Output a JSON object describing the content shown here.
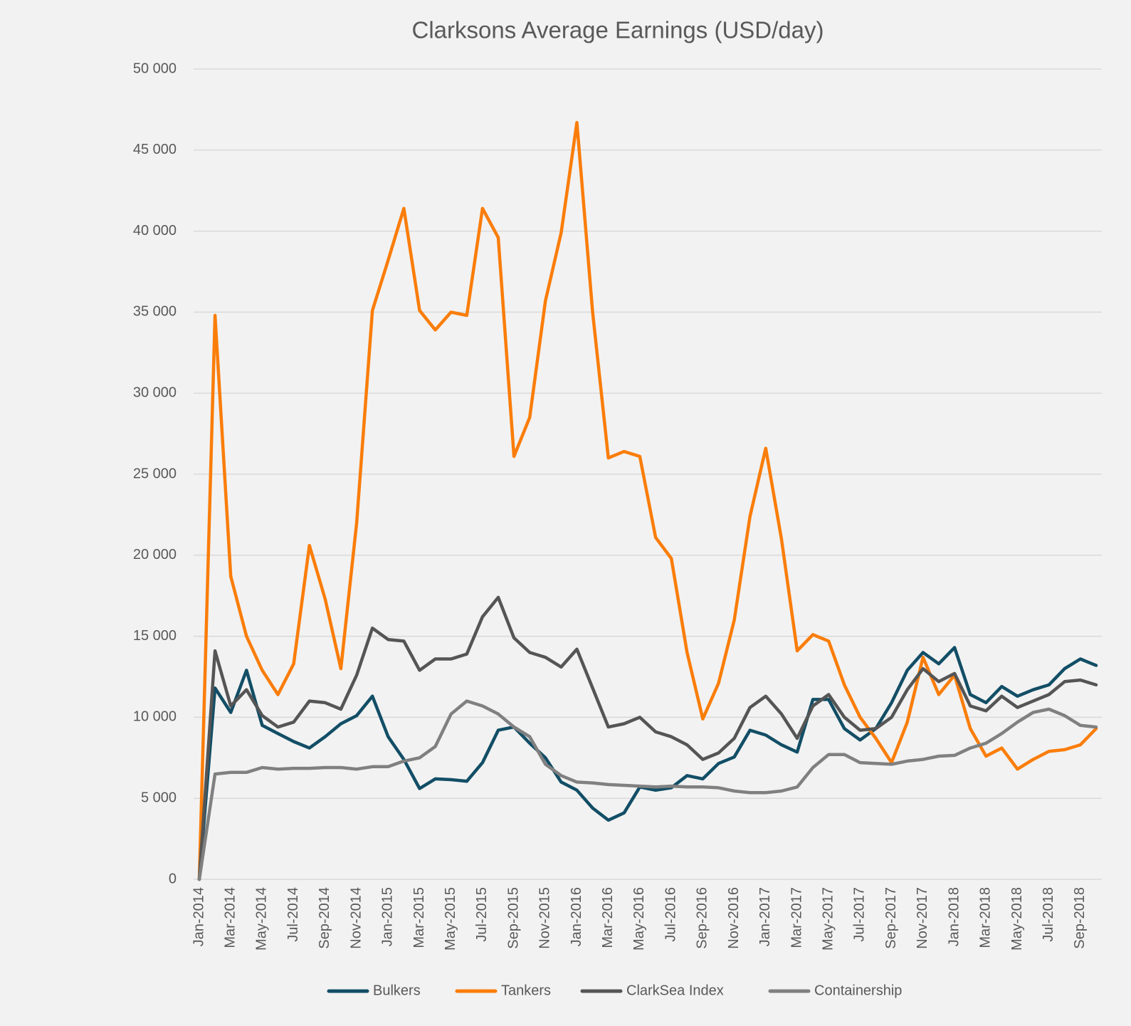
{
  "chart_data": {
    "type": "line",
    "title": "Clarksons Average Earnings (USD/day)",
    "categories": [
      "Jan-2014",
      null,
      "Mar-2014",
      null,
      "May-2014",
      null,
      "Jul-2014",
      null,
      "Sep-2014",
      null,
      "Nov-2014",
      null,
      "Jan-2015",
      null,
      "Mar-2015",
      null,
      "May-2015",
      null,
      "Jul-2015",
      null,
      "Sep-2015",
      null,
      "Nov-2015",
      null,
      "Jan-2016",
      null,
      "Mar-2016",
      null,
      "May-2016",
      null,
      "Jul-2016",
      null,
      "Sep-2016",
      null,
      "Nov-2016",
      null,
      "Jan-2017",
      null,
      "Mar-2017",
      null,
      "May-2017",
      null,
      "Jul-2017",
      null,
      "Sep-2017",
      null,
      "Nov-2017",
      null,
      "Jan-2018",
      null,
      "Mar-2018",
      null,
      "May-2018",
      null,
      "Jul-2018",
      null,
      "Sep-2018",
      null
    ],
    "series": [
      {
        "name": "Bulkers",
        "color": "#124e66",
        "values": [
          0,
          11800,
          10300,
          12900,
          9500,
          9000,
          8500,
          8100,
          8800,
          9600,
          10100,
          11300,
          8800,
          7400,
          5600,
          6200,
          6150,
          6050,
          7200,
          9200,
          9400,
          8400,
          7500,
          6000,
          5500,
          4400,
          3650,
          4100,
          5700,
          5500,
          5650,
          6400,
          6200,
          7150,
          7550,
          9200,
          8900,
          8300,
          7850,
          11100,
          11100,
          9300,
          8600,
          9300,
          10900,
          12900,
          14000,
          13300,
          14300,
          11400,
          10900,
          11900,
          11300,
          11700,
          12000,
          13000,
          13600,
          13200
        ]
      },
      {
        "name": "Tankers",
        "color": "#fa7d0a",
        "values": [
          0,
          34800,
          18700,
          15000,
          12900,
          11400,
          13300,
          20600,
          17300,
          13000,
          22000,
          35100,
          38200,
          41400,
          35100,
          33900,
          35000,
          34800,
          41400,
          39600,
          26100,
          28500,
          35700,
          39900,
          46700,
          35000,
          26000,
          26400,
          26100,
          21100,
          19800,
          14000,
          9900,
          12100,
          16000,
          22400,
          26600,
          21000,
          14100,
          15100,
          14700,
          12000,
          10000,
          8700,
          7200,
          9700,
          13700,
          11400,
          12600,
          9300,
          7600,
          8100,
          6800,
          7400,
          7900,
          8000,
          8300,
          9300
        ]
      },
      {
        "name": "ClarkSea Index",
        "color": "#555555",
        "values": [
          0,
          14100,
          10700,
          11700,
          10100,
          9400,
          9700,
          11000,
          10900,
          10500,
          12600,
          15500,
          14800,
          14700,
          12900,
          13600,
          13600,
          13900,
          16200,
          17400,
          14900,
          14000,
          13700,
          13100,
          14200,
          11800,
          9400,
          9600,
          10000,
          9100,
          8800,
          8300,
          7400,
          7800,
          8700,
          10600,
          11300,
          10200,
          8700,
          10700,
          11400,
          10000,
          9200,
          9300,
          10000,
          11700,
          13000,
          12200,
          12700,
          10700,
          10400,
          11300,
          10600,
          11000,
          11400,
          12200,
          12300,
          12000
        ]
      },
      {
        "name": "Containership",
        "color": "#808080",
        "values": [
          0,
          6500,
          6600,
          6600,
          6900,
          6800,
          6850,
          6850,
          6900,
          6900,
          6800,
          6950,
          6950,
          7300,
          7500,
          8200,
          10200,
          11000,
          10700,
          10200,
          9400,
          8800,
          7100,
          6400,
          6000,
          5950,
          5850,
          5800,
          5750,
          5700,
          5750,
          5700,
          5700,
          5650,
          5450,
          5350,
          5350,
          5450,
          5700,
          6900,
          7700,
          7700,
          7200,
          7150,
          7100,
          7300,
          7400,
          7600,
          7650,
          8100,
          8400,
          9000,
          9700,
          10300,
          10500,
          10100,
          9500,
          9400
        ]
      }
    ],
    "ylim": [
      0,
      50000
    ],
    "yticks": [
      {
        "value": 0,
        "label": "0"
      },
      {
        "value": 5000,
        "label": "5 000"
      },
      {
        "value": 10000,
        "label": "10 000"
      },
      {
        "value": 15000,
        "label": "15 000"
      },
      {
        "value": 20000,
        "label": "20 000"
      },
      {
        "value": 25000,
        "label": "25 000"
      },
      {
        "value": 30000,
        "label": "30 000"
      },
      {
        "value": 35000,
        "label": "35 000"
      },
      {
        "value": 40000,
        "label": "40 000"
      },
      {
        "value": 45000,
        "label": "45 000"
      },
      {
        "value": 50000,
        "label": "50 000"
      }
    ],
    "grid": true,
    "legend": "bottom"
  }
}
